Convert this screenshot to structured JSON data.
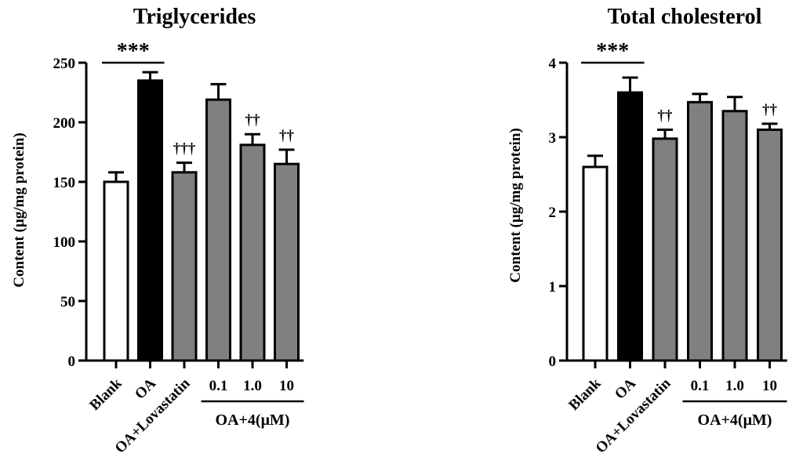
{
  "chart_data": [
    {
      "type": "bar",
      "title": "Triglycerides",
      "ylabel": "Content (µg/mg protein)",
      "xlabel": "",
      "ylim": [
        0,
        250
      ],
      "yticks": [
        0,
        50,
        100,
        150,
        200,
        250
      ],
      "categories": [
        "Blank",
        "OA",
        "OA+Lovastatin",
        "0.1",
        "1.0",
        "10"
      ],
      "values": [
        150,
        235,
        158,
        219,
        181,
        165
      ],
      "errors": [
        8,
        7,
        8,
        13,
        9,
        12
      ],
      "bar_colors": [
        "#ffffff",
        "#000000",
        "#808080",
        "#808080",
        "#808080",
        "#808080"
      ],
      "annotations": [
        "",
        "",
        "†††",
        "",
        "††",
        "††"
      ],
      "significance": {
        "from": "Blank",
        "to": "OA",
        "label": "***"
      },
      "group_label": {
        "text": "OA+4(μM)",
        "categories": [
          "0.1",
          "1.0",
          "10"
        ]
      }
    },
    {
      "type": "bar",
      "title": "Total cholesterol",
      "ylabel": "Content (µg/mg protein)",
      "xlabel": "",
      "ylim": [
        0,
        4
      ],
      "yticks": [
        0,
        1,
        2,
        3,
        4
      ],
      "categories": [
        "Blank",
        "OA",
        "OA+Lovastatin",
        "0.1",
        "1.0",
        "10"
      ],
      "values": [
        2.6,
        3.6,
        2.98,
        3.47,
        3.35,
        3.1
      ],
      "errors": [
        0.15,
        0.2,
        0.12,
        0.11,
        0.19,
        0.08
      ],
      "bar_colors": [
        "#ffffff",
        "#000000",
        "#808080",
        "#808080",
        "#808080",
        "#808080"
      ],
      "annotations": [
        "",
        "",
        "††",
        "",
        "",
        "††"
      ],
      "significance": {
        "from": "Blank",
        "to": "OA",
        "label": "***"
      },
      "group_label": {
        "text": "OA+4(μM)",
        "categories": [
          "0.1",
          "1.0",
          "10"
        ]
      }
    }
  ]
}
